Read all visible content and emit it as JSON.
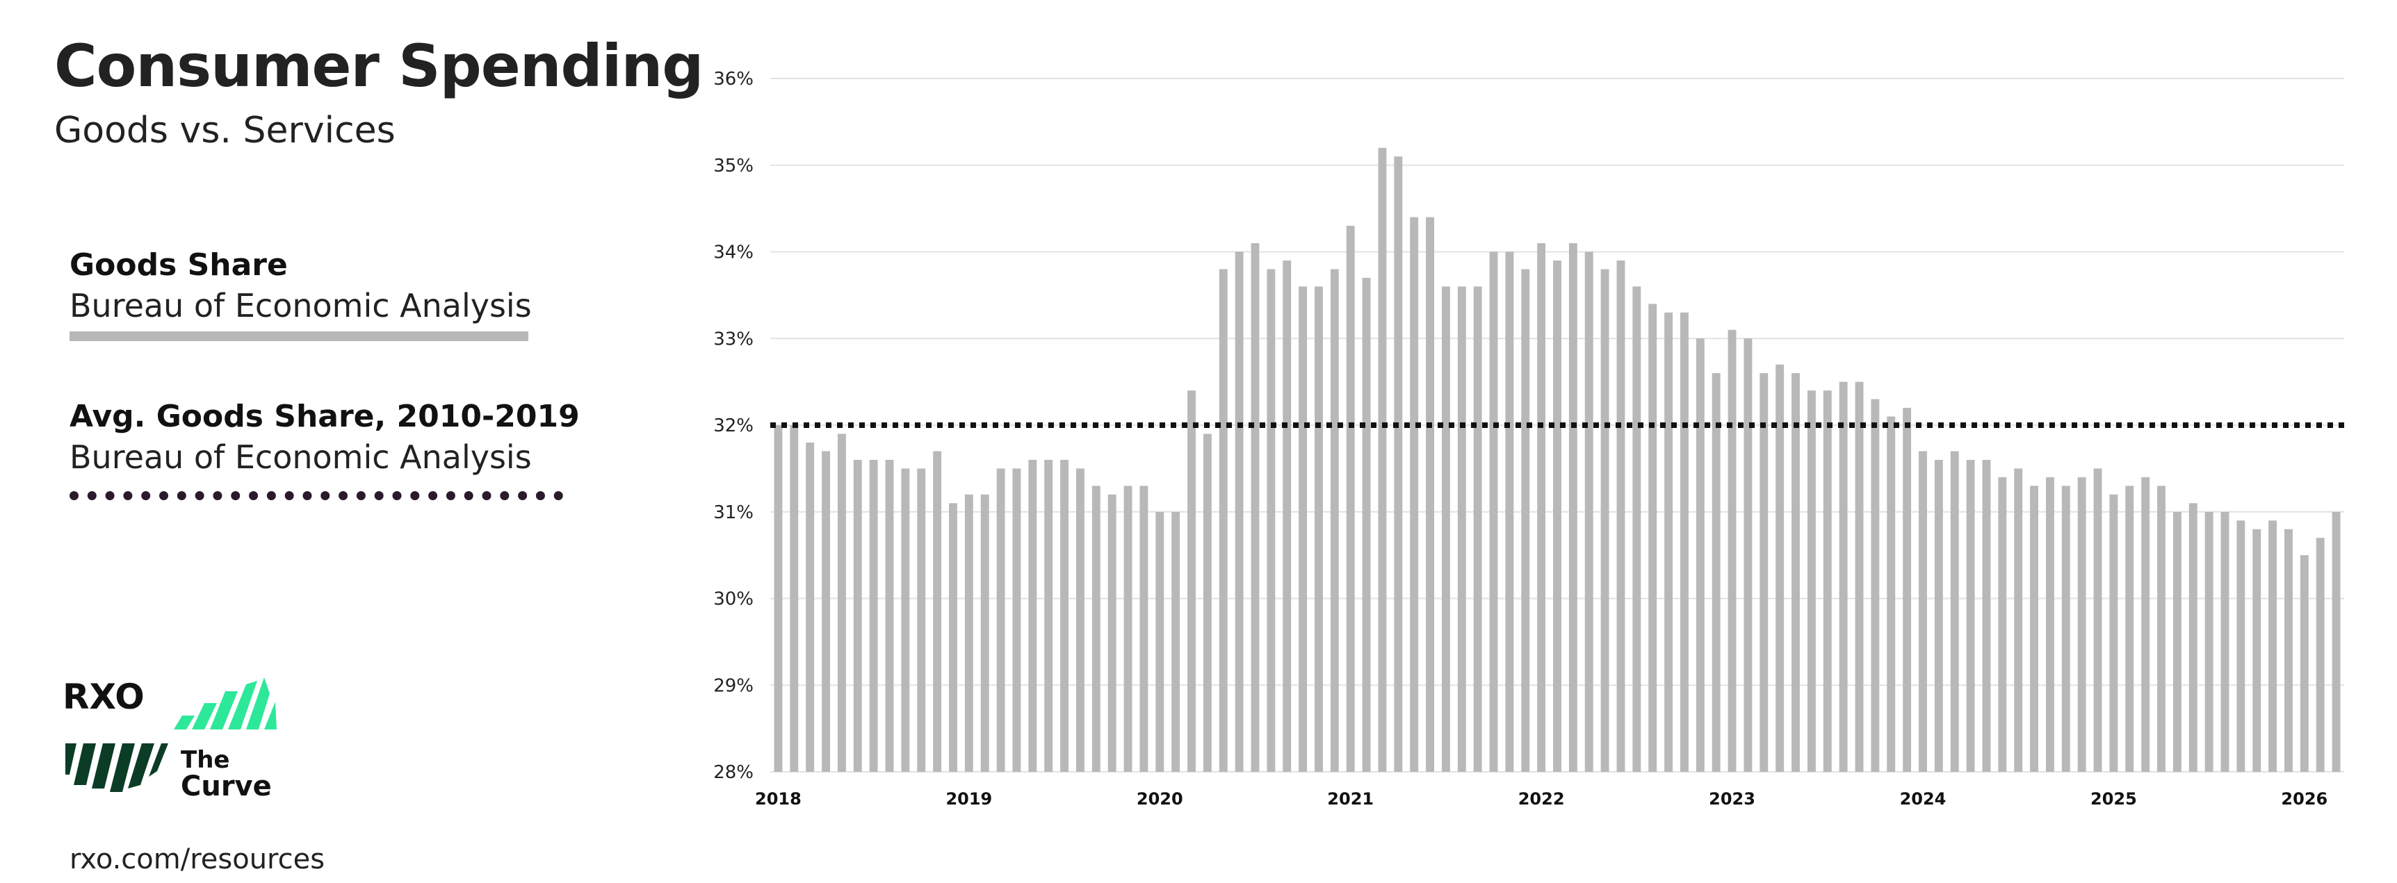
{
  "header": {
    "title": "Consumer Spending",
    "subtitle": "Goods vs. Services"
  },
  "legend": [
    {
      "name": "Goods Share",
      "source": "Bureau of Economic Analysis",
      "style": "solid",
      "color": "#b8b8b8"
    },
    {
      "name": "Avg. Goods Share, 2010-2019",
      "source": "Bureau of Economic Analysis",
      "style": "dotted",
      "color": "#2a1a2a"
    }
  ],
  "logo": {
    "brand": "RXO",
    "product_line1": "The",
    "product_line2": "Curve",
    "green": "#2ee89a",
    "dark_green": "#0b3d26"
  },
  "footer": {
    "url": "rxo.com/resources"
  },
  "colors": {
    "bar": "#b8b8b8",
    "avg_line": "#111111",
    "grid": "#e2e2e2"
  },
  "chart_data": {
    "type": "bar",
    "title": "",
    "xlabel": "",
    "ylabel": "",
    "ylim": [
      28,
      36
    ],
    "y_ticks": [
      "28%",
      "29%",
      "30%",
      "31%",
      "32%",
      "33%",
      "34%",
      "35%",
      "36%"
    ],
    "x_tick_labels": [
      "2018",
      "2019",
      "2020",
      "2021",
      "2022",
      "2023",
      "2024",
      "2025",
      "2026"
    ],
    "x_start": "2018-01",
    "frequency": "monthly",
    "series": [
      {
        "name": "Goods Share",
        "values": [
          32.0,
          32.0,
          31.8,
          31.7,
          31.9,
          31.6,
          31.6,
          31.6,
          31.5,
          31.5,
          31.7,
          31.1,
          31.2,
          31.2,
          31.5,
          31.5,
          31.6,
          31.6,
          31.6,
          31.5,
          31.3,
          31.2,
          31.3,
          31.3,
          31.0,
          31.0,
          32.4,
          31.9,
          33.8,
          34.0,
          34.1,
          33.8,
          33.9,
          33.6,
          33.6,
          33.8,
          34.3,
          33.7,
          35.2,
          35.1,
          34.4,
          34.4,
          33.6,
          33.6,
          33.6,
          34.0,
          34.0,
          33.8,
          34.1,
          33.9,
          34.1,
          34.0,
          33.8,
          33.9,
          33.6,
          33.4,
          33.3,
          33.3,
          33.0,
          32.6,
          33.1,
          33.0,
          32.6,
          32.7,
          32.6,
          32.4,
          32.4,
          32.5,
          32.5,
          32.3,
          32.1,
          32.2,
          31.7,
          31.6,
          31.7,
          31.6,
          31.6,
          31.4,
          31.5,
          31.3,
          31.4,
          31.3,
          31.4,
          31.5,
          31.2,
          31.3,
          31.4,
          31.3,
          31.0,
          31.1,
          31.0,
          31.0,
          30.9,
          30.8,
          30.9,
          30.8,
          30.5,
          30.7,
          31.0
        ]
      },
      {
        "name": "Avg. Goods Share, 2010-2019",
        "constant": 32.0
      }
    ]
  }
}
